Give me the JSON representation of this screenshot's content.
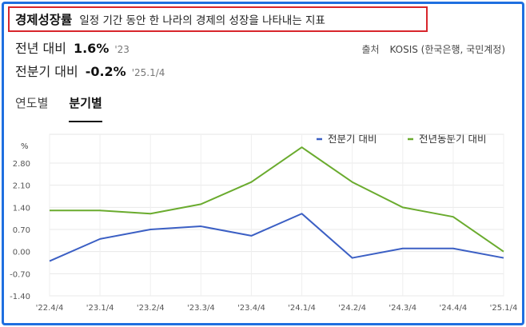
{
  "header": {
    "title": "경제성장률",
    "description": "일정 기간 동안 한 나라의 경제의 성장을 나타내는 지표"
  },
  "stats": [
    {
      "label": "전년 대비",
      "value": "1.6%",
      "period": "'23"
    },
    {
      "label": "전분기 대비",
      "value": "-0.2%",
      "period": "'25.1/4"
    }
  ],
  "source": {
    "label": "출처",
    "name": "KOSIS (한국은행, 국민계정)"
  },
  "tabs": [
    {
      "label": "연도별",
      "active": false
    },
    {
      "label": "분기별",
      "active": true
    }
  ],
  "chart_data": {
    "type": "line",
    "ylabel": "%",
    "categories": [
      "'22.4/4",
      "'23.1/4",
      "'23.2/4",
      "'23.3/4",
      "'23.4/4",
      "'24.1/4",
      "'24.2/4",
      "'24.3/4",
      "'24.4/4",
      "'25.1/4"
    ],
    "yticks": [
      "2.80",
      "2.10",
      "1.40",
      "0.70",
      "0.00",
      "-0.70",
      "-1.40"
    ],
    "ylim": [
      -1.4,
      2.8
    ],
    "legend_position": "top-right",
    "grid": true,
    "series": [
      {
        "name": "전분기 대비",
        "color": "#3b5fc4",
        "values": [
          -0.3,
          0.4,
          0.7,
          0.8,
          0.5,
          1.2,
          -0.2,
          0.1,
          0.1,
          -0.2
        ]
      },
      {
        "name": "전년동분기 대비",
        "color": "#6aab2e",
        "values": [
          1.3,
          1.3,
          1.2,
          1.5,
          2.2,
          3.3,
          2.2,
          1.4,
          1.1,
          0.0
        ]
      }
    ]
  }
}
